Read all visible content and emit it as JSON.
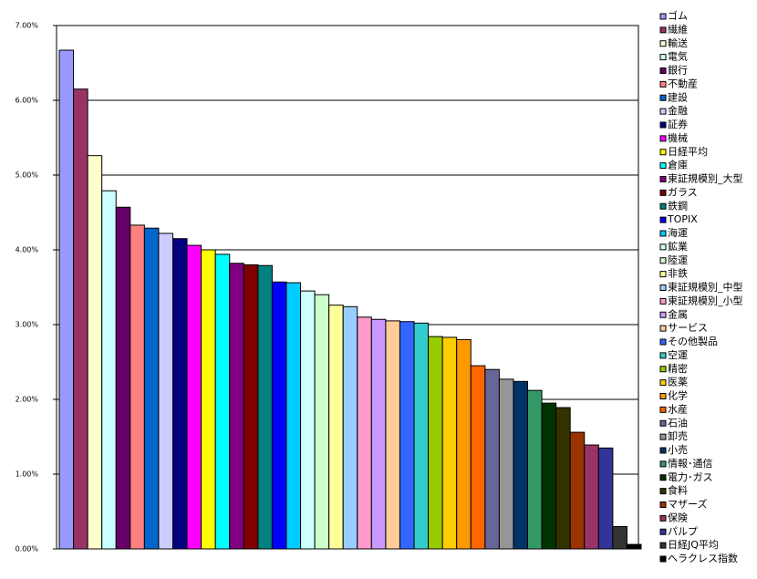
{
  "chart_data": {
    "type": "bar",
    "categories": [
      "ゴム",
      "繊維",
      "輸送",
      "電気",
      "銀行",
      "不動産",
      "建設",
      "金融",
      "証券",
      "機械",
      "日経平均",
      "倉庫",
      "東証規模別_大型",
      "ガラス",
      "鉄鋼",
      "TOPIX",
      "海運",
      "鉱業",
      "陸運",
      "非鉄",
      "東証規模別_中型",
      "東証規模別_小型",
      "金属",
      "サービス",
      "その他製品",
      "空運",
      "精密",
      "医薬",
      "化学",
      "水産",
      "石油",
      "卸売",
      "小売",
      "情報･通信",
      "電力･ガス",
      "食料",
      "マザーズ",
      "保険",
      "パルプ",
      "日経JQ平均",
      "ヘラクレス指数"
    ],
    "values": [
      6.67,
      6.15,
      5.26,
      4.79,
      4.57,
      4.33,
      4.29,
      4.22,
      4.15,
      4.06,
      4.0,
      3.94,
      3.82,
      3.8,
      3.79,
      3.57,
      3.56,
      3.45,
      3.4,
      3.26,
      3.24,
      3.1,
      3.07,
      3.05,
      3.04,
      3.02,
      2.84,
      2.83,
      2.8,
      2.45,
      2.4,
      2.27,
      2.24,
      2.12,
      1.95,
      1.89,
      1.56,
      1.39,
      1.35,
      0.3,
      0.06
    ],
    "colors": [
      "#9999ff",
      "#993366",
      "#ffffcc",
      "#ccffff",
      "#660066",
      "#ff8080",
      "#0066cc",
      "#ccccff",
      "#000080",
      "#ff00ff",
      "#ffff00",
      "#00ffff",
      "#800080",
      "#800000",
      "#008080",
      "#0000ff",
      "#00ccff",
      "#ccffff",
      "#ccffcc",
      "#ffff99",
      "#99ccff",
      "#ff99cc",
      "#cc99ff",
      "#ffcc99",
      "#3366ff",
      "#33cccc",
      "#99cc00",
      "#ffcc00",
      "#ff9900",
      "#ff6600",
      "#666699",
      "#969696",
      "#003366",
      "#339966",
      "#003300",
      "#333300",
      "#993300",
      "#993366",
      "#333399",
      "#333333",
      "#000000"
    ],
    "ylim": [
      0,
      7
    ],
    "yticks": [
      {
        "value": 0,
        "label": "0.00%"
      },
      {
        "value": 1,
        "label": "1.00%"
      },
      {
        "value": 2,
        "label": "2.00%"
      },
      {
        "value": 3,
        "label": "3.00%"
      },
      {
        "value": 4,
        "label": "4.00%"
      },
      {
        "value": 5,
        "label": "5.00%"
      },
      {
        "value": 6,
        "label": "6.00%"
      },
      {
        "value": 7,
        "label": "7.00%"
      }
    ],
    "grid": true,
    "legend": "right"
  }
}
